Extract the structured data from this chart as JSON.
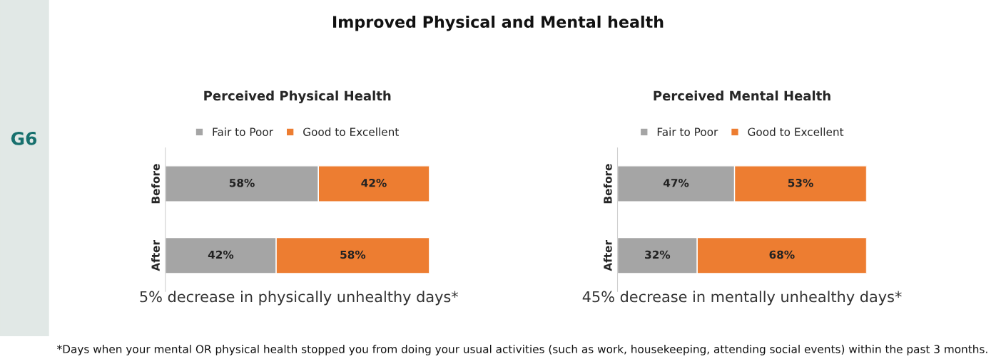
{
  "chart_data": [
    {
      "type": "bar",
      "orientation": "horizontal",
      "stacked": true,
      "title": "Perceived Physical Health",
      "categories": [
        "Before",
        "After"
      ],
      "xlim": [
        0,
        100
      ],
      "tick_labels": "y",
      "legend": "top",
      "grid": false,
      "series": [
        {
          "name": "Fair to Poor",
          "color": "#a5a5a5",
          "values": [
            58,
            42
          ],
          "value_labels": [
            "58%",
            "42%"
          ]
        },
        {
          "name": "Good to Excellent",
          "color": "#ed7d31",
          "values": [
            42,
            58
          ],
          "value_labels": [
            "42%",
            "58%"
          ]
        }
      ],
      "annotations": [
        "Improved Physical and Mental health",
        "G6",
        "5% decrease in physically unhealthy days*",
        "*Days when your mental OR physical health stopped you from doing your usual activities (such as work, housekeeping, attending social events) within the past 3 months."
      ]
    },
    {
      "type": "bar",
      "orientation": "horizontal",
      "stacked": true,
      "title": "Perceived Mental Health",
      "categories": [
        "Before",
        "After"
      ],
      "xlim": [
        0,
        100
      ],
      "tick_labels": "y",
      "legend": "top",
      "grid": false,
      "series": [
        {
          "name": "Fair to Poor",
          "color": "#a5a5a5",
          "values": [
            47,
            32
          ],
          "value_labels": [
            "47%",
            "32%"
          ]
        },
        {
          "name": "Good to Excellent",
          "color": "#ed7d31",
          "values": [
            53,
            68
          ],
          "value_labels": [
            "53%",
            "68%"
          ]
        }
      ],
      "annotations": [
        "45% decrease in mentally unhealthy days*"
      ]
    }
  ]
}
